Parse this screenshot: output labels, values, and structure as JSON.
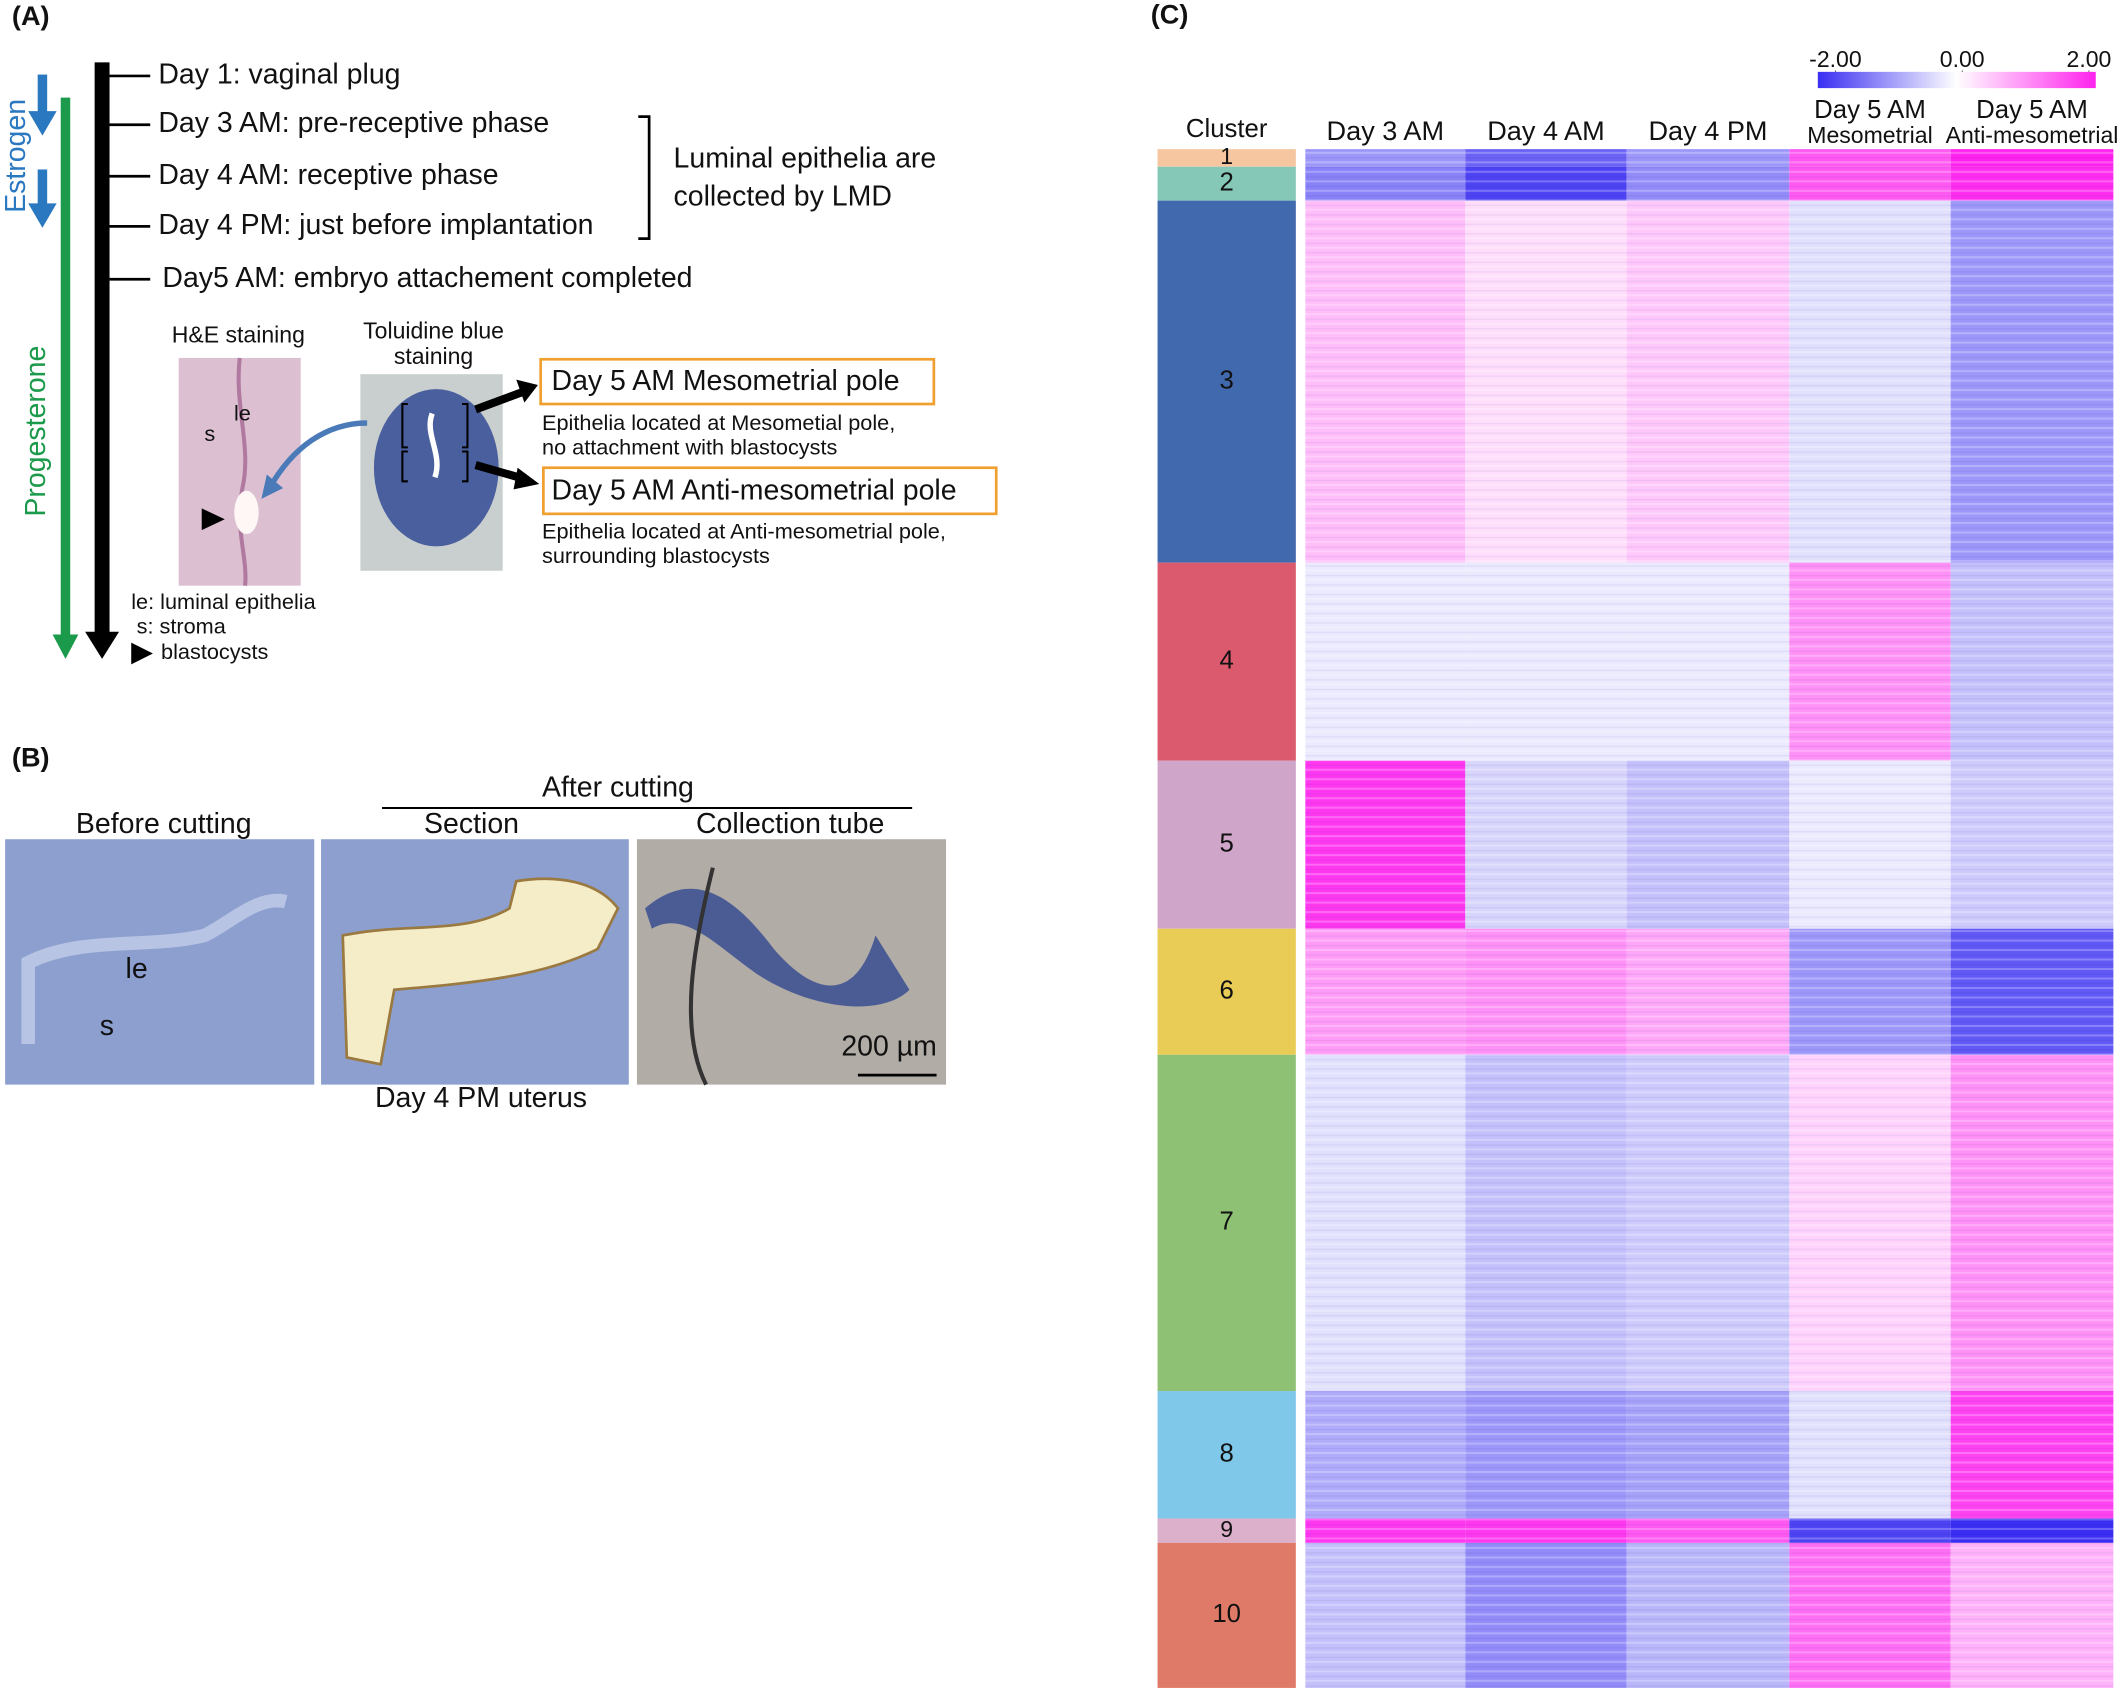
{
  "panel_a": {
    "label": "(A)",
    "estrogen": "Estrogen",
    "progesterone": "Progesterone",
    "timeline": [
      "Day 1: vaginal plug",
      "Day 3 AM: pre-receptive phase",
      "Day 4 AM: receptive phase",
      "Day 4 PM: just before implantation",
      "Day5 AM: embryo attachement completed"
    ],
    "bracket_note": [
      "Luminal epithelia are",
      "collected by LMD"
    ],
    "he_title": "H&E staining",
    "he_labels": [
      "s",
      "le"
    ],
    "tb_title": [
      "Toluidine blue",
      "staining"
    ],
    "poles": [
      {
        "title": "Day 5 AM Mesometrial pole",
        "desc": [
          "Epithelia located at Mesometial pole,",
          "no attachment with blastocysts"
        ]
      },
      {
        "title": "Day 5 AM Anti-mesometrial pole",
        "desc": [
          "Epithelia located at Anti-mesometrial pole,",
          "surrounding blastocysts"
        ]
      }
    ],
    "legend": [
      "le: luminal epithelia",
      "s: stroma",
      "blastocysts"
    ]
  },
  "panel_b": {
    "label": "(B)",
    "after": "After cutting",
    "images": [
      "Before cutting",
      "Section",
      "Collection tube"
    ],
    "image_labels": [
      "le",
      "s"
    ],
    "scale": "200 µm",
    "caption": "Day 4 PM uterus"
  },
  "chart_data": {
    "type": "heatmap",
    "label": "(C)",
    "row_header": "Cluster",
    "columns": [
      [
        "Day 3 AM"
      ],
      [
        "Day 4 AM"
      ],
      [
        "Day 4 PM"
      ],
      [
        "Day 5 AM",
        "Mesometrial"
      ],
      [
        "Day 5 AM",
        "Anti-mesometrial"
      ]
    ],
    "categories": [
      "1",
      "2",
      "3",
      "4",
      "5",
      "6",
      "7",
      "8",
      "9",
      "10"
    ],
    "cluster_colors": [
      "#f5c6a0",
      "#86c8b8",
      "#4169ad",
      "#dc5a6e",
      "#cfa6c9",
      "#e8cc55",
      "#8ec173",
      "#7fc8ea",
      "#dcb0cb",
      "#e07a68"
    ],
    "values": [
      [
        -1.0,
        -1.5,
        -1.0,
        1.5,
        2.0
      ],
      [
        -1.2,
        -1.8,
        -1.1,
        1.5,
        1.9
      ],
      [
        0.6,
        0.3,
        0.5,
        -0.3,
        -1.0
      ],
      [
        -0.2,
        -0.2,
        -0.2,
        1.0,
        -0.6
      ],
      [
        1.8,
        -0.4,
        -0.6,
        -0.2,
        -0.5
      ],
      [
        0.9,
        1.0,
        0.8,
        -1.0,
        -1.6
      ],
      [
        -0.3,
        -0.6,
        -0.5,
        0.4,
        1.0
      ],
      [
        -0.8,
        -1.0,
        -0.9,
        -0.3,
        1.7
      ],
      [
        1.8,
        1.8,
        1.5,
        -1.8,
        -2.0
      ],
      [
        -0.6,
        -1.1,
        -0.7,
        1.3,
        0.7
      ]
    ],
    "zlim": [
      -2,
      2
    ],
    "colors": [
      "#3a2ef2",
      "#ffffff",
      "#ff22ee"
    ],
    "colorbar_ticks": [
      {
        "value": -2,
        "label": "-2.00"
      },
      {
        "value": 0,
        "label": "0.00"
      },
      {
        "value": 2,
        "label": "2.00"
      }
    ]
  }
}
